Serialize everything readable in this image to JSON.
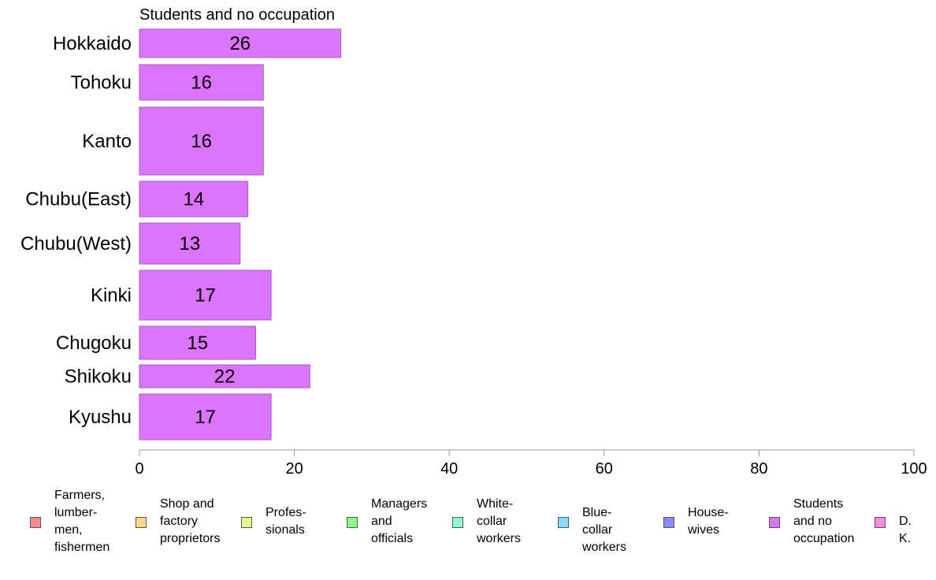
{
  "chart_data": {
    "type": "bar",
    "orientation": "horizontal",
    "title": "Students and no occupation",
    "categories": [
      "Hokkaido",
      "Tohoku",
      "Kanto",
      "Chubu(East)",
      "Chubu(West)",
      "Kinki",
      "Chugoku",
      "Shikoku",
      "Kyushu"
    ],
    "values": [
      26,
      16,
      16,
      14,
      13,
      17,
      15,
      22,
      17
    ],
    "xlim": [
      0,
      100
    ],
    "xticks": [
      0,
      20,
      40,
      60,
      80,
      100
    ],
    "bar_color": "#dc74ff",
    "grid": false,
    "legend_position": "bottom",
    "legend": [
      {
        "label": "Farmers,\nlumber-\nmen,\nfishermen",
        "color": "#ff8a8a"
      },
      {
        "label": "Shop and\nfactory\nproprietors",
        "color": "#ffd98a"
      },
      {
        "label": "Profes-\nsionals",
        "color": "#e6ff8a"
      },
      {
        "label": "Managers\nand\nofficials",
        "color": "#8aff8a"
      },
      {
        "label": "White-\ncollar\nworkers",
        "color": "#8affd9"
      },
      {
        "label": "Blue-collar\nworkers",
        "color": "#8ad9ff"
      },
      {
        "label": "House-\nwives",
        "color": "#8a8aff"
      },
      {
        "label": "Students\nand no\noccupation",
        "color": "#dc74ff"
      },
      {
        "label": "D. K.",
        "color": "#ff8ad9"
      }
    ]
  }
}
